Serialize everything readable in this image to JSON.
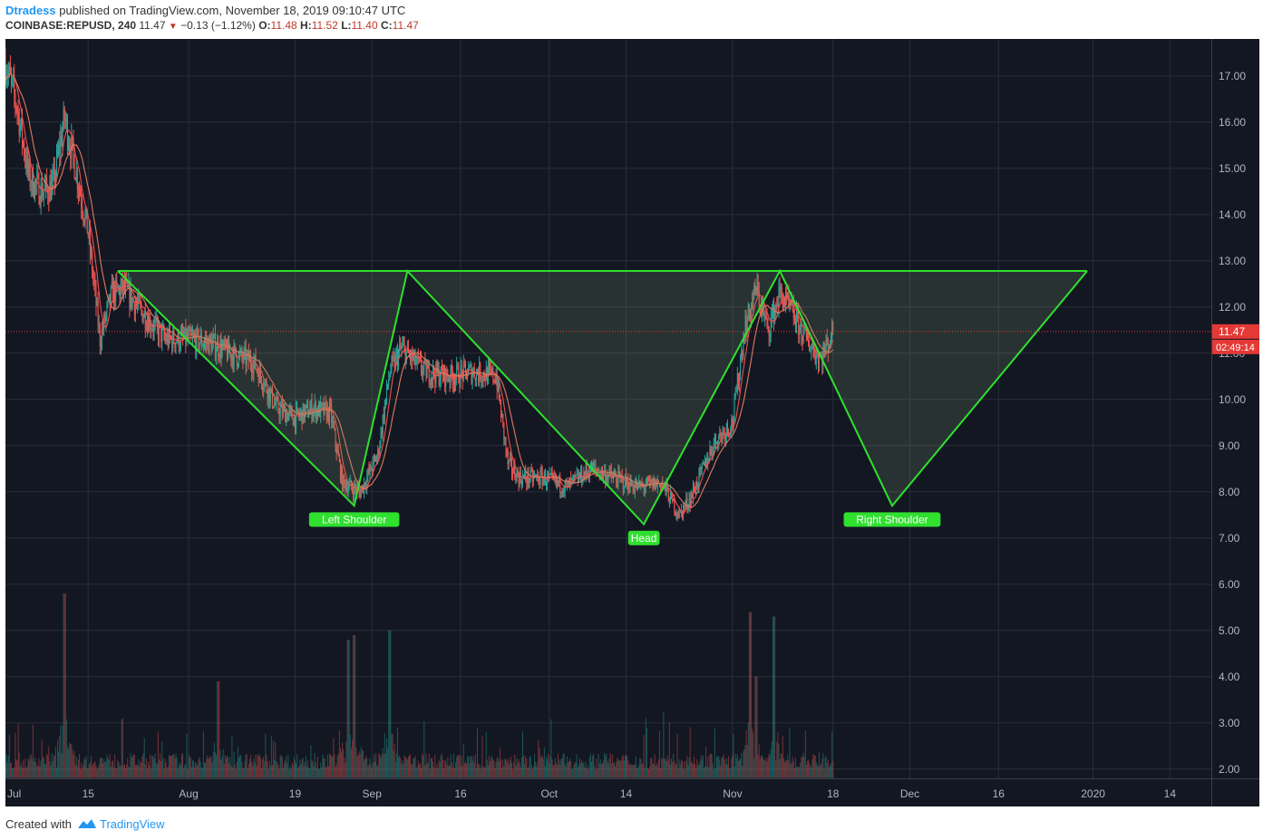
{
  "header": {
    "publisher": "Dtradess",
    "published_text": "published on TradingView.com, November 18, 2019 09:10:47 UTC",
    "symbol": "COINBASE:REPUSD, 240",
    "last": "11.47",
    "change": "−0.13 (−1.12%)",
    "o_label": "O:",
    "o_value": "11.48",
    "h_label": "H:",
    "h_value": "11.52",
    "l_label": "L:",
    "l_value": "11.40",
    "c_label": "C:",
    "c_value": "11.47"
  },
  "footer": {
    "created_with": "Created with",
    "brand": "TradingView"
  },
  "colors": {
    "background": "#131722",
    "grid": "#2a2e39",
    "pattern": "#2fe02f",
    "up": "#26a69a",
    "down": "#ef5350",
    "ma_fast": "#ef5350",
    "ma_slow": "#e07a5f",
    "price_tag": "#e53935"
  },
  "chart_data": {
    "type": "candlestick",
    "symbol": "COINBASE:REPUSD",
    "interval": "240",
    "y_ticks": [
      "17.00",
      "16.00",
      "15.00",
      "14.00",
      "13.00",
      "12.00",
      "11.00",
      "10.00",
      "9.00",
      "8.00",
      "7.00",
      "6.00",
      "5.00",
      "4.00",
      "3.00",
      "2.00"
    ],
    "x_ticks": [
      "Jul",
      "15",
      "Aug",
      "19",
      "Sep",
      "16",
      "Oct",
      "14",
      "Nov",
      "18",
      "Dec",
      "16",
      "2020",
      "14"
    ],
    "ylim": [
      1.8,
      17.8
    ],
    "xlim": [
      "2019-07-01",
      "2020-01-21"
    ],
    "last_price_label": "11.47",
    "countdown_label": "02:49:14",
    "neckline": {
      "value": 12.78,
      "from": "2019-07-20",
      "to": "2019-12-31"
    },
    "pattern_points": [
      {
        "date": "2019-07-20",
        "value": 12.78
      },
      {
        "date": "2019-08-29",
        "value": 7.7
      },
      {
        "date": "2019-09-07",
        "value": 12.78
      },
      {
        "date": "2019-10-17",
        "value": 7.3
      },
      {
        "date": "2019-11-09",
        "value": 12.78
      },
      {
        "date": "2019-11-28",
        "value": 7.7
      },
      {
        "date": "2019-12-31",
        "value": 12.78
      }
    ],
    "annotations": [
      {
        "text": "Left Shoulder",
        "date": "2019-08-29",
        "value": 7.4
      },
      {
        "text": "Head",
        "date": "2019-10-17",
        "value": 7.0
      },
      {
        "text": "Right Shoulder",
        "date": "2019-11-28",
        "value": 7.4
      }
    ],
    "price_series": [
      {
        "date": "2019-07-01",
        "value": 17.3
      },
      {
        "date": "2019-07-03",
        "value": 16.3
      },
      {
        "date": "2019-07-05",
        "value": 14.8
      },
      {
        "date": "2019-07-07",
        "value": 14.5
      },
      {
        "date": "2019-07-09",
        "value": 14.6
      },
      {
        "date": "2019-07-11",
        "value": 16.1
      },
      {
        "date": "2019-07-13",
        "value": 14.9
      },
      {
        "date": "2019-07-15",
        "value": 13.6
      },
      {
        "date": "2019-07-17",
        "value": 11.3
      },
      {
        "date": "2019-07-19",
        "value": 12.3
      },
      {
        "date": "2019-07-21",
        "value": 12.4
      },
      {
        "date": "2019-07-24",
        "value": 11.9
      },
      {
        "date": "2019-07-28",
        "value": 11.3
      },
      {
        "date": "2019-08-01",
        "value": 11.3
      },
      {
        "date": "2019-08-05",
        "value": 11.2
      },
      {
        "date": "2019-08-08",
        "value": 11.0
      },
      {
        "date": "2019-08-12",
        "value": 10.8
      },
      {
        "date": "2019-08-16",
        "value": 9.8
      },
      {
        "date": "2019-08-19",
        "value": 9.6
      },
      {
        "date": "2019-08-22",
        "value": 9.8
      },
      {
        "date": "2019-08-25",
        "value": 9.7
      },
      {
        "date": "2019-08-27",
        "value": 8.2
      },
      {
        "date": "2019-08-30",
        "value": 8.0
      },
      {
        "date": "2019-09-02",
        "value": 8.8
      },
      {
        "date": "2019-09-04",
        "value": 10.6
      },
      {
        "date": "2019-09-06",
        "value": 11.1
      },
      {
        "date": "2019-09-10",
        "value": 10.6
      },
      {
        "date": "2019-09-14",
        "value": 10.5
      },
      {
        "date": "2019-09-18",
        "value": 10.6
      },
      {
        "date": "2019-09-22",
        "value": 10.5
      },
      {
        "date": "2019-09-24",
        "value": 8.6
      },
      {
        "date": "2019-09-26",
        "value": 8.3
      },
      {
        "date": "2019-09-30",
        "value": 8.3
      },
      {
        "date": "2019-10-04",
        "value": 8.1
      },
      {
        "date": "2019-10-08",
        "value": 8.5
      },
      {
        "date": "2019-10-12",
        "value": 8.3
      },
      {
        "date": "2019-10-16",
        "value": 8.1
      },
      {
        "date": "2019-10-20",
        "value": 8.2
      },
      {
        "date": "2019-10-23",
        "value": 7.5
      },
      {
        "date": "2019-10-25",
        "value": 7.9
      },
      {
        "date": "2019-10-27",
        "value": 8.5
      },
      {
        "date": "2019-10-29",
        "value": 9.1
      },
      {
        "date": "2019-11-01",
        "value": 9.5
      },
      {
        "date": "2019-11-03",
        "value": 11.5
      },
      {
        "date": "2019-11-05",
        "value": 12.4
      },
      {
        "date": "2019-11-07",
        "value": 11.5
      },
      {
        "date": "2019-11-09",
        "value": 12.3
      },
      {
        "date": "2019-11-11",
        "value": 11.9
      },
      {
        "date": "2019-11-13",
        "value": 11.4
      },
      {
        "date": "2019-11-15",
        "value": 11.0
      },
      {
        "date": "2019-11-16",
        "value": 10.9
      },
      {
        "date": "2019-11-18",
        "value": 11.47
      }
    ],
    "volume_spikes": [
      {
        "date": "2019-07-11",
        "value": 5.8
      },
      {
        "date": "2019-08-06",
        "value": 3.9
      },
      {
        "date": "2019-08-28",
        "value": 4.8
      },
      {
        "date": "2019-08-29",
        "value": 4.9
      },
      {
        "date": "2019-09-04",
        "value": 5.0
      },
      {
        "date": "2019-11-04",
        "value": 5.4
      },
      {
        "date": "2019-11-05",
        "value": 4.0
      },
      {
        "date": "2019-11-08",
        "value": 5.3
      }
    ]
  }
}
